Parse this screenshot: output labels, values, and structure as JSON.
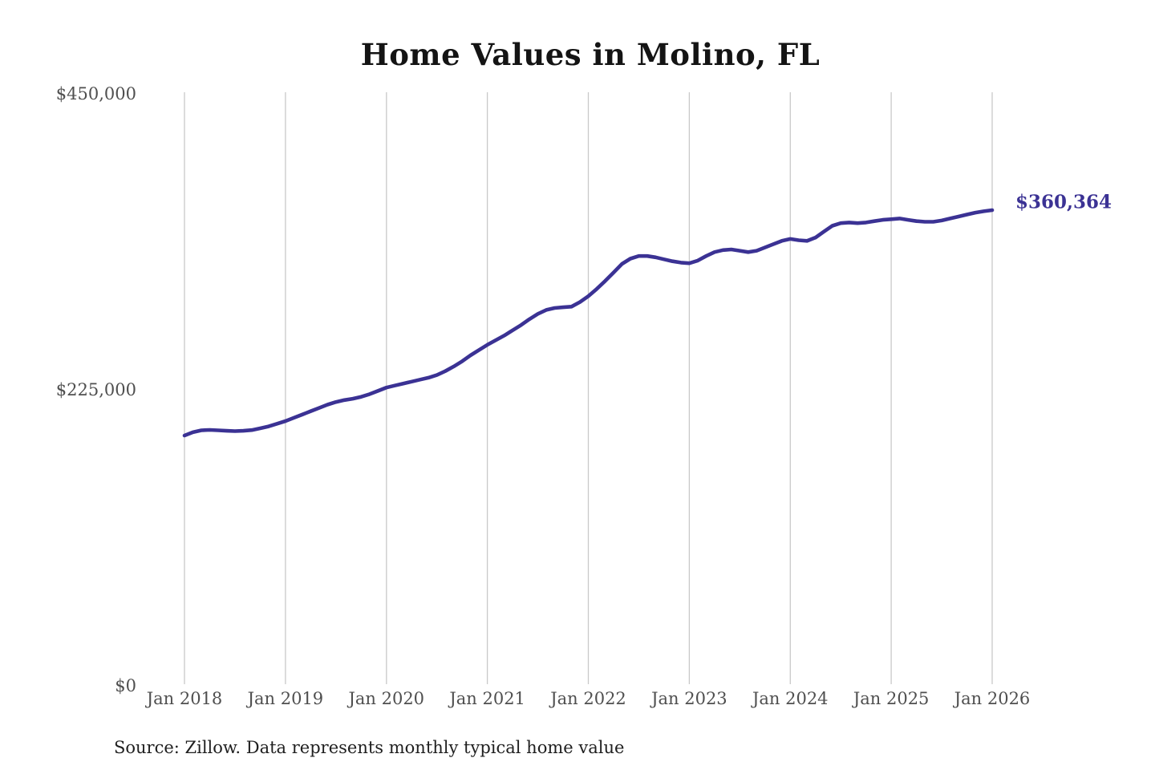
{
  "chart": {
    "title": "Home Values in Molino, FL",
    "source_note": "Source: Zillow. Data represents monthly typical home value",
    "end_label": "$360,364",
    "line_color": "#3b3294",
    "grid_color": "#c9c9c9",
    "axis_label_color": "#4f4f4f",
    "title_color": "#141414",
    "annotation_color": "#3b3294",
    "source_color": "#1f1f1f",
    "background": "#ffffff"
  },
  "chart_data": {
    "type": "line",
    "title": "Home Values in Molino, FL",
    "series_name": "Monthly typical home value (USD)",
    "x_unit": "month",
    "x": [
      "2018-01",
      "2018-02",
      "2018-03",
      "2018-04",
      "2018-05",
      "2018-06",
      "2018-07",
      "2018-08",
      "2018-09",
      "2018-10",
      "2018-11",
      "2018-12",
      "2019-01",
      "2019-02",
      "2019-03",
      "2019-04",
      "2019-05",
      "2019-06",
      "2019-07",
      "2019-08",
      "2019-09",
      "2019-10",
      "2019-11",
      "2019-12",
      "2020-01",
      "2020-02",
      "2020-03",
      "2020-04",
      "2020-05",
      "2020-06",
      "2020-07",
      "2020-08",
      "2020-09",
      "2020-10",
      "2020-11",
      "2020-12",
      "2021-01",
      "2021-02",
      "2021-03",
      "2021-04",
      "2021-05",
      "2021-06",
      "2021-07",
      "2021-08",
      "2021-09",
      "2021-10",
      "2021-11",
      "2021-12",
      "2022-01",
      "2022-02",
      "2022-03",
      "2022-04",
      "2022-05",
      "2022-06",
      "2022-07",
      "2022-08",
      "2022-09",
      "2022-10",
      "2022-11",
      "2022-12",
      "2023-01",
      "2023-02",
      "2023-03",
      "2023-04",
      "2023-05",
      "2023-06",
      "2023-07",
      "2023-08",
      "2023-09",
      "2023-10",
      "2023-11",
      "2023-12",
      "2024-01",
      "2024-02",
      "2024-03",
      "2024-04",
      "2024-05",
      "2024-06",
      "2024-07",
      "2024-08",
      "2024-09",
      "2024-10",
      "2024-11",
      "2024-12",
      "2025-01",
      "2025-02",
      "2025-03",
      "2025-04",
      "2025-05",
      "2025-06",
      "2025-07",
      "2025-08",
      "2025-09",
      "2025-10",
      "2025-11",
      "2025-12",
      "2026-01"
    ],
    "values": [
      189000,
      191500,
      193000,
      193300,
      193000,
      192600,
      192400,
      192600,
      193200,
      194500,
      196000,
      198000,
      200000,
      202500,
      205000,
      207500,
      210000,
      212500,
      214500,
      216000,
      217000,
      218500,
      220500,
      223000,
      225500,
      227000,
      228500,
      230000,
      231500,
      233000,
      235000,
      238000,
      241500,
      245500,
      250000,
      254000,
      258000,
      261500,
      265000,
      269000,
      273000,
      277500,
      281500,
      284500,
      286000,
      286500,
      287000,
      290500,
      295000,
      300500,
      306500,
      313000,
      319500,
      323500,
      325500,
      325500,
      324500,
      323000,
      321500,
      320500,
      320000,
      322000,
      325500,
      328500,
      330000,
      330500,
      329500,
      328500,
      329500,
      332000,
      334500,
      337000,
      338500,
      337500,
      337000,
      339500,
      344000,
      348500,
      350500,
      351000,
      350500,
      351000,
      352000,
      353000,
      353500,
      354000,
      353000,
      352000,
      351500,
      351500,
      352500,
      354000,
      355500,
      357000,
      358500,
      359500,
      360364
    ],
    "x_tick_labels": [
      "Jan 2018",
      "Jan 2019",
      "Jan 2020",
      "Jan 2021",
      "Jan 2022",
      "Jan 2023",
      "Jan 2024",
      "Jan 2025",
      "Jan 2026"
    ],
    "y_ticks": [
      {
        "label": "$450,000",
        "value": 450000
      },
      {
        "label": "$225,000",
        "value": 225000
      },
      {
        "label": "$0",
        "value": 0
      }
    ],
    "ylim": [
      0,
      450000
    ],
    "grid": "vertical-only",
    "legend": "none",
    "annotation": {
      "text": "$360,364",
      "x": "2026-01",
      "value": 360364
    }
  }
}
